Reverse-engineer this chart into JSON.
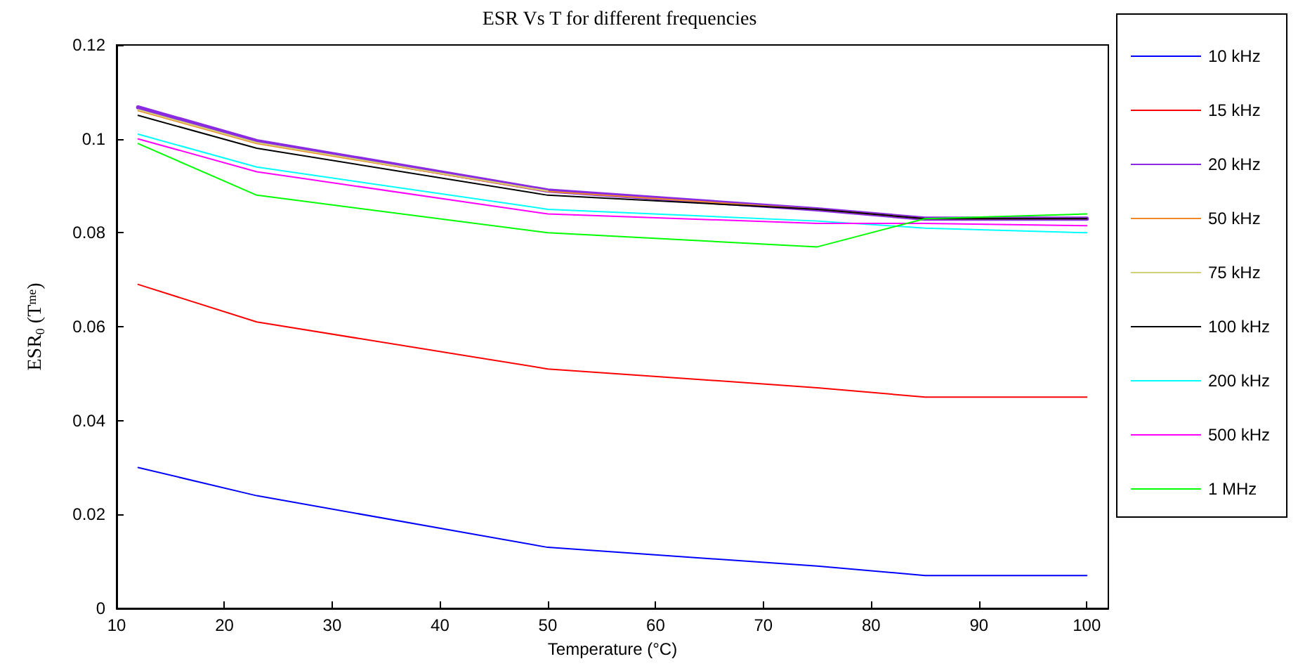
{
  "chart_data": {
    "type": "line",
    "title": "ESR Vs T for different frequencies",
    "xlabel": "Temperature (°C)",
    "ylabel": "ESR$_{0}$ (T$^{me}$)",
    "x": [
      12,
      23,
      50,
      75,
      85,
      100
    ],
    "series": [
      {
        "name": "10 kHz",
        "color": "#0000ff",
        "values": [
          0.03,
          0.024,
          0.013,
          0.009,
          0.007,
          0.007
        ]
      },
      {
        "name": "15 kHz",
        "color": "#ff0000",
        "values": [
          0.069,
          0.061,
          0.051,
          0.047,
          0.045,
          0.045
        ]
      },
      {
        "name": "20 kHz",
        "color": "#8a2be2",
        "values": [
          0.1067,
          0.0995,
          0.089,
          0.085,
          0.083,
          0.083
        ]
      },
      {
        "name": "50 kHz",
        "color": "#ee8a2a",
        "values": [
          0.106,
          0.099,
          0.0888,
          0.085,
          0.083,
          0.083
        ]
      },
      {
        "name": "75 kHz",
        "color": "#d4d07a",
        "values": [
          0.1062,
          0.0992,
          0.0889,
          null,
          null,
          null
        ]
      },
      {
        "name": "100 kHz",
        "color": "#000000",
        "values": [
          0.105,
          0.098,
          0.088,
          0.085,
          0.083,
          0.083
        ]
      },
      {
        "name": "200 kHz",
        "color": "#00ffff",
        "values": [
          0.101,
          0.094,
          0.085,
          0.0825,
          0.081,
          0.08
        ]
      },
      {
        "name": "500 kHz",
        "color": "#ff00ff",
        "values": [
          0.1,
          0.093,
          0.084,
          0.082,
          0.082,
          0.0815
        ]
      },
      {
        "name": "1 MHz",
        "color": "#00ff00",
        "values": [
          0.099,
          0.088,
          0.08,
          0.077,
          0.083,
          0.084
        ]
      }
    ],
    "xlim": [
      10,
      102
    ],
    "xticks": [
      10,
      20,
      30,
      40,
      50,
      60,
      70,
      80,
      90,
      100
    ],
    "ylim": [
      0,
      0.12
    ],
    "yticks": [
      0,
      0.02,
      0.04,
      0.06,
      0.08,
      0.1,
      0.12
    ],
    "grid": false,
    "legend": "right",
    "line_style": "solid",
    "marker": "none"
  }
}
